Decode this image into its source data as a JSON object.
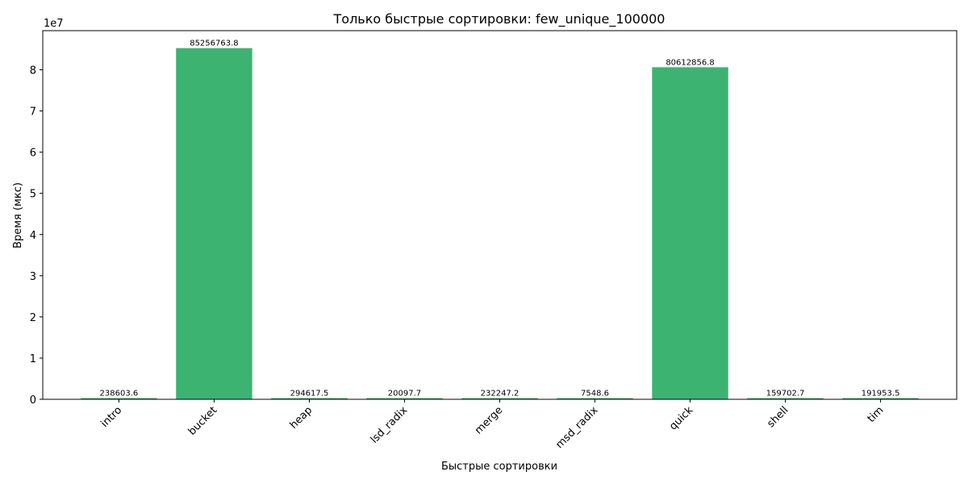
{
  "chart_data": {
    "type": "bar",
    "title": "Только быстрые сортировки: few_unique_100000",
    "xlabel": "Быстрые сортировки",
    "ylabel": "Время (мкс)",
    "y_scale_label": "1e7",
    "categories": [
      "intro",
      "bucket",
      "heap",
      "lsd_radix",
      "merge",
      "msd_radix",
      "quick",
      "shell",
      "tim"
    ],
    "values": [
      238603.6,
      85256763.8,
      294617.5,
      20097.7,
      232247.2,
      7548.6,
      80612856.8,
      159702.7,
      191953.5
    ],
    "value_labels": [
      "238603.6",
      "85256763.8",
      "294617.5",
      "20097.7",
      "232247.2",
      "7548.6",
      "80612856.8",
      "159702.7",
      "191953.5"
    ],
    "ylim": [
      0,
      89500000
    ],
    "y_ticks": [
      0,
      10000000,
      20000000,
      30000000,
      40000000,
      50000000,
      60000000,
      70000000,
      80000000
    ],
    "y_tick_labels": [
      "0",
      "1",
      "2",
      "3",
      "4",
      "5",
      "6",
      "7",
      "8"
    ],
    "bar_color": "#3cb371",
    "grid": false,
    "legend": "none"
  }
}
